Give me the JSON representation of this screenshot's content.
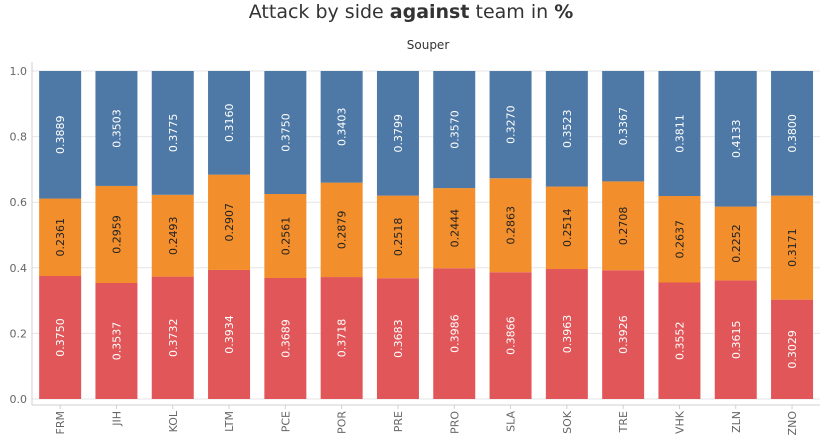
{
  "title": {
    "part1": "Attack by side ",
    "part2": "against",
    "part3": " team in ",
    "part4": "%"
  },
  "facet_label": "Souper",
  "chart_data": {
    "type": "bar",
    "stacked": true,
    "title": "Attack by side against team in %",
    "categories": [
      "FRM",
      "JIH",
      "KOL",
      "LTM",
      "PCE",
      "POR",
      "PRE",
      "PRO",
      "SLA",
      "SOK",
      "TRE",
      "VHK",
      "ZLN",
      "ZNO"
    ],
    "ylim": [
      0,
      1.0
    ],
    "yticks": [
      "0.0",
      "0.2",
      "0.4",
      "0.6",
      "0.8",
      "1.0"
    ],
    "grid": "horizontal",
    "series": [
      {
        "color": "#e15759",
        "label_color": "#ffffff",
        "values": [
          0.375,
          0.3537,
          0.3732,
          0.3934,
          0.3689,
          0.3718,
          0.3683,
          0.3986,
          0.3866,
          0.3963,
          0.3926,
          0.3552,
          0.3615,
          0.3029
        ],
        "labels": [
          "0.3750",
          "0.3537",
          "0.3732",
          "0.3934",
          "0.3689",
          "0.3718",
          "0.3683",
          "0.3986",
          "0.3866",
          "0.3963",
          "0.3926",
          "0.3552",
          "0.3615",
          "0.3029"
        ]
      },
      {
        "color": "#f28e2b",
        "label_color": "#222222",
        "values": [
          0.2361,
          0.2959,
          0.2493,
          0.2907,
          0.2561,
          0.2879,
          0.2518,
          0.2444,
          0.2863,
          0.2514,
          0.2708,
          0.2637,
          0.2252,
          0.3171
        ],
        "labels": [
          "0.2361",
          "0.2959",
          "0.2493",
          "0.2907",
          "0.2561",
          "0.2879",
          "0.2518",
          "0.2444",
          "0.2863",
          "0.2514",
          "0.2708",
          "0.2637",
          "0.2252",
          "0.3171"
        ]
      },
      {
        "color": "#4e79a7",
        "label_color": "#ffffff",
        "values": [
          0.3889,
          0.3503,
          0.3775,
          0.316,
          0.375,
          0.3403,
          0.3799,
          0.357,
          0.327,
          0.3523,
          0.3367,
          0.3811,
          0.4133,
          0.38
        ],
        "labels": [
          "0.3889",
          "0.3503",
          "0.3775",
          "0.3160",
          "0.3750",
          "0.3403",
          "0.3799",
          "0.3570",
          "0.3270",
          "0.3523",
          "0.3367",
          "0.3811",
          "0.4133",
          "0.3800"
        ]
      }
    ]
  }
}
